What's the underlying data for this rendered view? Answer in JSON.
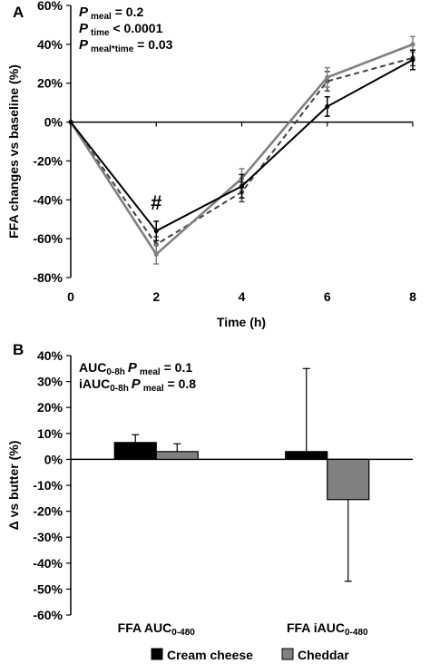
{
  "panels": [
    {
      "letter": "A",
      "chart_data": {
        "type": "line",
        "x": [
          0,
          2,
          4,
          6,
          8
        ],
        "xlabel": "Time (h)",
        "ylabel": "FFA changes vs baseline (%)",
        "xlim": [
          0,
          8
        ],
        "ylim": [
          -80,
          60
        ],
        "yticks": [
          -80,
          -60,
          -40,
          -20,
          0,
          20,
          40,
          60
        ],
        "ytick_labels": [
          "-80%",
          "-60%",
          "-40%",
          "-20%",
          "0%",
          "20%",
          "40%",
          "60%"
        ],
        "xticks": [
          0,
          2,
          4,
          6,
          8
        ],
        "xtick_labels": [
          "0",
          "2",
          "4",
          "6",
          "8"
        ],
        "grid": false,
        "series": [
          {
            "name": "Cream cheese",
            "style": "solid",
            "color": "#000000",
            "values": [
              0,
              -56,
              -33,
              8,
              32
            ],
            "errors": [
              0,
              5,
              6,
              5,
              5
            ]
          },
          {
            "name": "Cheddar",
            "style": "solid",
            "color": "#808080",
            "values": [
              0,
              -68,
              -29,
              23,
              40
            ],
            "errors": [
              0,
              5,
              5,
              5,
              4
            ]
          },
          {
            "name": "",
            "style": "dashed",
            "color": "#404040",
            "values": [
              0,
              -63,
              -36,
              21,
              33
            ],
            "errors": [
              0,
              4,
              5,
              5,
              4
            ]
          }
        ],
        "annotations": [
          {
            "text": "#",
            "x": 2,
            "y": -46
          }
        ],
        "stats": [
          {
            "p": "P",
            "sub": "meal",
            "rest": " = 0.2"
          },
          {
            "p": "P",
            "sub": "time",
            "rest": " < 0.0001"
          },
          {
            "p": "P",
            "sub": "meal*time",
            "rest": " = 0.03"
          }
        ]
      }
    },
    {
      "letter": "B",
      "chart_data": {
        "type": "bar",
        "categories": [
          "FFA AUC",
          "FFA iAUC"
        ],
        "category_subscripts": [
          "0-480",
          "0-480"
        ],
        "ylabel": "Δ vs butter (%)",
        "ylim": [
          -60,
          40
        ],
        "yticks": [
          -60,
          -50,
          -40,
          -30,
          -20,
          -10,
          0,
          10,
          20,
          30,
          40
        ],
        "ytick_labels": [
          "-60%",
          "-50%",
          "-40%",
          "-30%",
          "-20%",
          "-10%",
          "0%",
          "10%",
          "20%",
          "30%",
          "40%"
        ],
        "grid": false,
        "series": [
          {
            "name": "Cream cheese",
            "color": "#000000",
            "values": [
              6.5,
              3
            ],
            "errors": [
              3,
              32
            ]
          },
          {
            "name": "Cheddar",
            "color": "#808080",
            "values": [
              3,
              -15.5
            ],
            "errors": [
              3,
              31.5
            ]
          }
        ],
        "legend_position": "bottom",
        "stats": [
          {
            "pre": "AUC",
            "pre_sub": "0-8h",
            "p": "P",
            "sub": "meal",
            "rest": " = 0.1"
          },
          {
            "pre": "iAUC",
            "pre_sub": "0-8h",
            "p": "P",
            "sub": "meal",
            "rest": " = 0.8"
          }
        ]
      }
    }
  ]
}
